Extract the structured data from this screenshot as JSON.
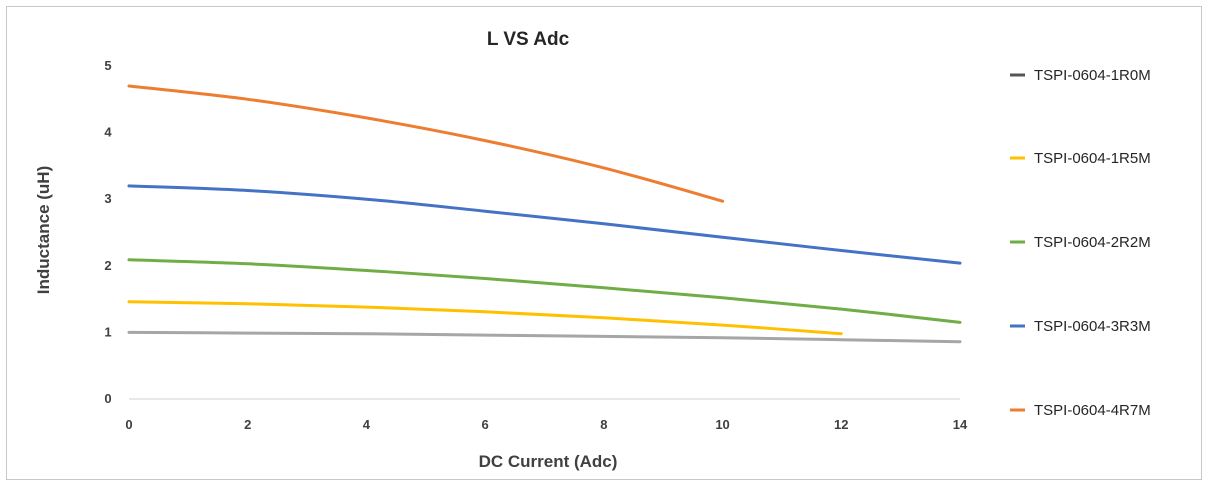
{
  "chart_data": {
    "type": "line",
    "title": "L VS Adc",
    "xlabel": "DC Current (Adc)",
    "ylabel": "Inductance (uH)",
    "xlim": [
      0,
      14
    ],
    "ylim": [
      0,
      5
    ],
    "xticks": [
      "0",
      "2",
      "4",
      "6",
      "8",
      "10",
      "12",
      "14"
    ],
    "yticks": [
      "0",
      "1",
      "2",
      "3",
      "4",
      "5"
    ],
    "grid": false,
    "legend": "right",
    "series": [
      {
        "name": "TSPI-0604-1R0M",
        "color": "#a6a6a6",
        "x": [
          0,
          2,
          4,
          6,
          8,
          10,
          12,
          14
        ],
        "y": [
          1.0,
          0.99,
          0.98,
          0.96,
          0.94,
          0.92,
          0.89,
          0.86
        ]
      },
      {
        "name": "TSPI-0604-1R5M",
        "color": "#ffc000",
        "x": [
          0,
          2,
          4,
          6,
          8,
          10,
          12
        ],
        "y": [
          1.46,
          1.43,
          1.38,
          1.31,
          1.22,
          1.11,
          0.98
        ]
      },
      {
        "name": "TSPI-0604-2R2M",
        "color": "#70ad47",
        "x": [
          0,
          2,
          4,
          6,
          8,
          10,
          12,
          14
        ],
        "y": [
          2.09,
          2.03,
          1.93,
          1.81,
          1.67,
          1.52,
          1.35,
          1.15
        ]
      },
      {
        "name": "TSPI-0604-3R3M",
        "color": "#4472c4",
        "x": [
          0,
          2,
          4,
          6,
          8,
          10,
          12,
          14
        ],
        "y": [
          3.2,
          3.13,
          3.0,
          2.82,
          2.63,
          2.43,
          2.23,
          2.04
        ]
      },
      {
        "name": "TSPI-0604-4R7M",
        "color": "#ed7d31",
        "x": [
          0,
          2,
          4,
          6,
          8,
          10
        ],
        "y": [
          4.7,
          4.5,
          4.22,
          3.88,
          3.47,
          2.97
        ]
      }
    ]
  }
}
